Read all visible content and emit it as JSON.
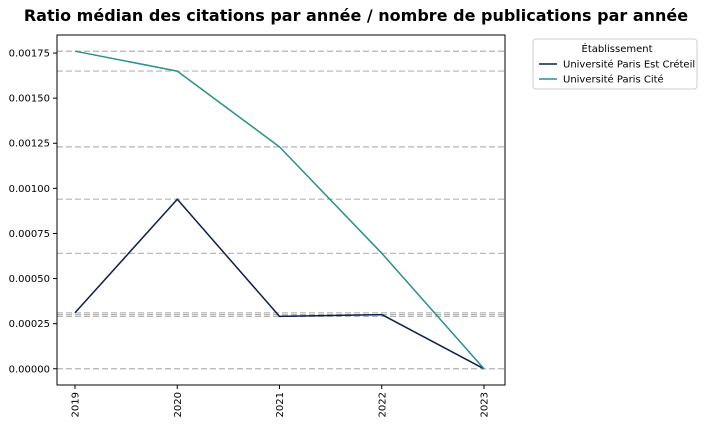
{
  "chart_data": {
    "type": "line",
    "title": "Ratio médian des citations par année / nombre de publications par année",
    "xlabel": "",
    "ylabel": "",
    "categories": [
      "2019",
      "2020",
      "2021",
      "2022",
      "2023"
    ],
    "y_ticks": [
      "0.00000",
      "0.00025",
      "0.00050",
      "0.00075",
      "0.00100",
      "0.00125",
      "0.00150",
      "0.00175"
    ],
    "ylim": [
      -9e-05,
      0.00185
    ],
    "grid": "horizontal dashed lines at each data value",
    "legend": {
      "title": "Établissement",
      "placement": "outside-right-top"
    },
    "series": [
      {
        "name": "Université Paris Est Créteil",
        "color": "#0d1f4f",
        "values": [
          0.00031,
          0.00094,
          0.00029,
          0.0003,
          0.0
        ]
      },
      {
        "name": "Université Paris Cité",
        "color": "#2a9090",
        "values": [
          0.00176,
          0.00165,
          0.00123,
          0.00064,
          0.0
        ]
      }
    ],
    "gridline_values": [
      0.00176,
      0.00165,
      0.00123,
      0.00094,
      0.00064,
      0.00031,
      0.0003,
      0.00029,
      0.0
    ]
  }
}
